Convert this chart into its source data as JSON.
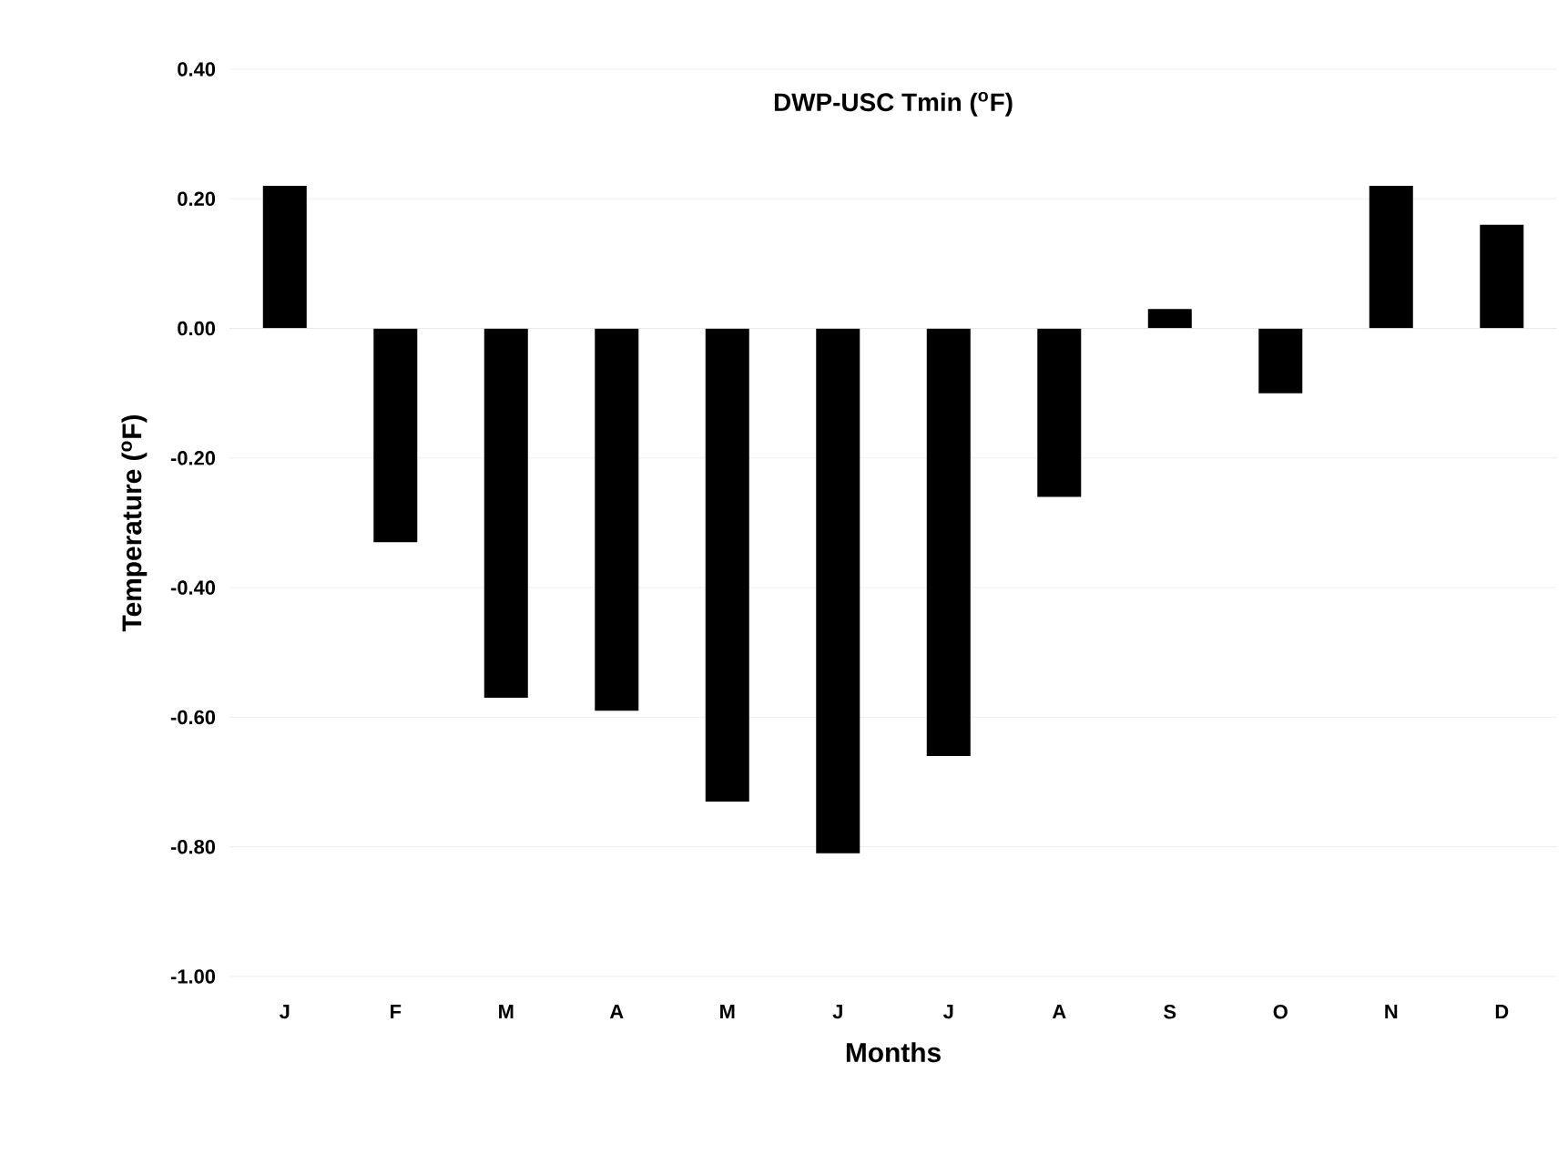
{
  "chart_data": {
    "type": "bar",
    "title": "DWP-USC Tmin ($^{o}$F)",
    "xlabel": "Months",
    "ylabel": "Temperature ($^{o}$F)",
    "categories": [
      "J",
      "F",
      "M",
      "A",
      "M",
      "J",
      "J",
      "A",
      "S",
      "O",
      "N",
      "D"
    ],
    "values": [
      0.22,
      -0.33,
      -0.57,
      -0.59,
      -0.73,
      -0.81,
      -0.66,
      -0.26,
      0.03,
      -0.1,
      0.22,
      0.16
    ],
    "color": "#000000",
    "ylim": [
      -1.0,
      0.4
    ],
    "yticks": [
      {
        "value": -1.0,
        "label": "-1.00"
      },
      {
        "value": -0.8,
        "label": "-0.80"
      },
      {
        "value": -0.6,
        "label": "-0.60"
      },
      {
        "value": -0.4,
        "label": "-0.40"
      },
      {
        "value": -0.2,
        "label": "-0.20"
      },
      {
        "value": 0.0,
        "label": "0.00"
      },
      {
        "value": 0.2,
        "label": "0.20"
      },
      {
        "value": 0.4,
        "label": "0.40"
      }
    ],
    "grid": "y"
  }
}
